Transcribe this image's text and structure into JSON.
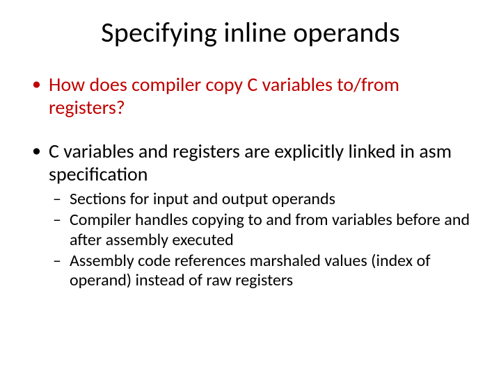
{
  "slide": {
    "title": "Specifying inline operands",
    "title_color": "#000000",
    "title_fontsize": 40,
    "background_color": "#ffffff",
    "bullets": [
      {
        "text": "How does compiler copy C variables to/from registers?",
        "color": "#c00000",
        "fontsize": 28,
        "subbullets": []
      },
      {
        "text": "C variables and registers are explicitly linked in asm specification",
        "color": "#000000",
        "fontsize": 28,
        "subbullets": [
          {
            "text": "Sections for input and output operands",
            "color": "#000000",
            "fontsize": 24
          },
          {
            "text": "Compiler handles copying to and from variables before and after assembly executed",
            "color": "#000000",
            "fontsize": 24
          },
          {
            "text": "Assembly code references marshaled values (index of operand) instead of raw registers",
            "color": "#000000",
            "fontsize": 24
          }
        ]
      }
    ]
  }
}
